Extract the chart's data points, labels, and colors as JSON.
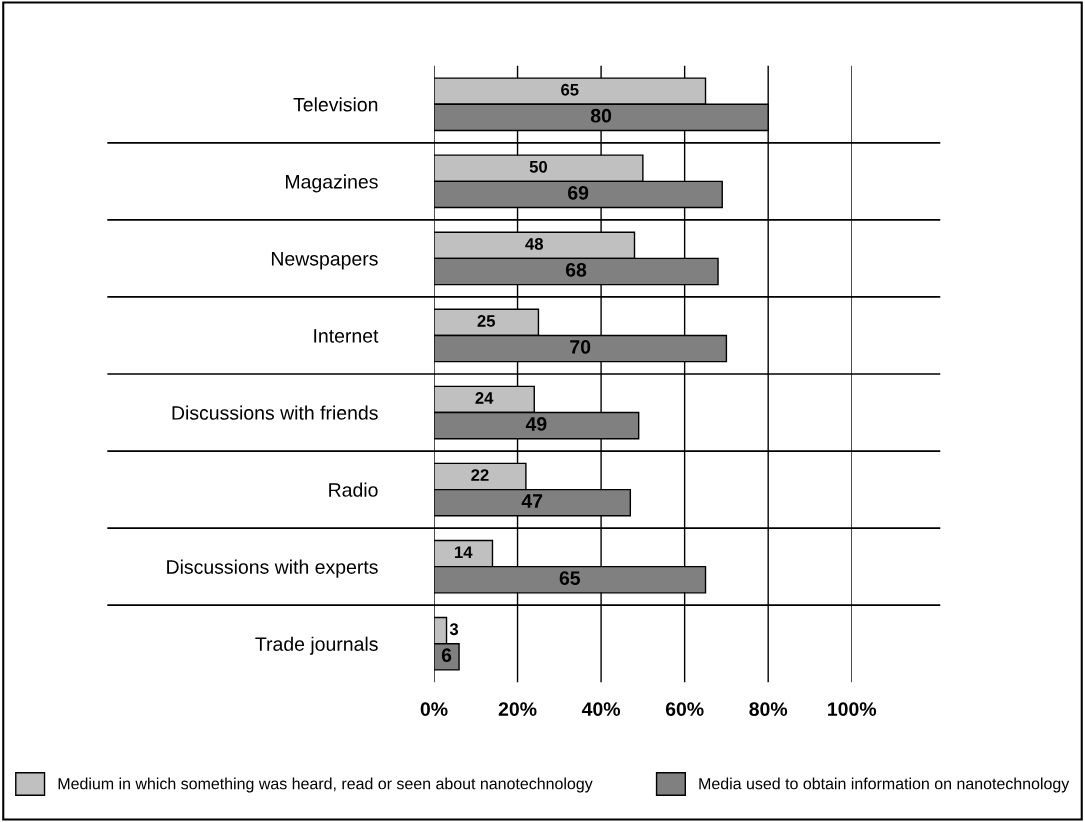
{
  "chart_data": {
    "type": "bar",
    "orientation": "horizontal",
    "categories": [
      "Television",
      "Magazines",
      "Newspapers",
      "Internet",
      "Discussions with friends",
      "Radio",
      "Discussions with experts",
      "Trade journals"
    ],
    "series": [
      {
        "name": "Medium in which something was heard, read or seen about nanotechnology",
        "color": "#c0c0c0",
        "values": [
          65,
          50,
          48,
          25,
          24,
          22,
          14,
          3
        ]
      },
      {
        "name": "Media used to obtain information on nanotechnology",
        "color": "#808080",
        "values": [
          80,
          69,
          68,
          70,
          49,
          47,
          65,
          6
        ]
      }
    ],
    "xlim": [
      0,
      100
    ],
    "xticks": [
      {
        "value": 0,
        "label": "0%"
      },
      {
        "value": 20,
        "label": "20%"
      },
      {
        "value": 40,
        "label": "40%"
      },
      {
        "value": 60,
        "label": "60%"
      },
      {
        "value": 80,
        "label": "80%"
      },
      {
        "value": 100,
        "label": "100%"
      }
    ],
    "data_labels": true,
    "grid": true,
    "legend": "bottom"
  }
}
